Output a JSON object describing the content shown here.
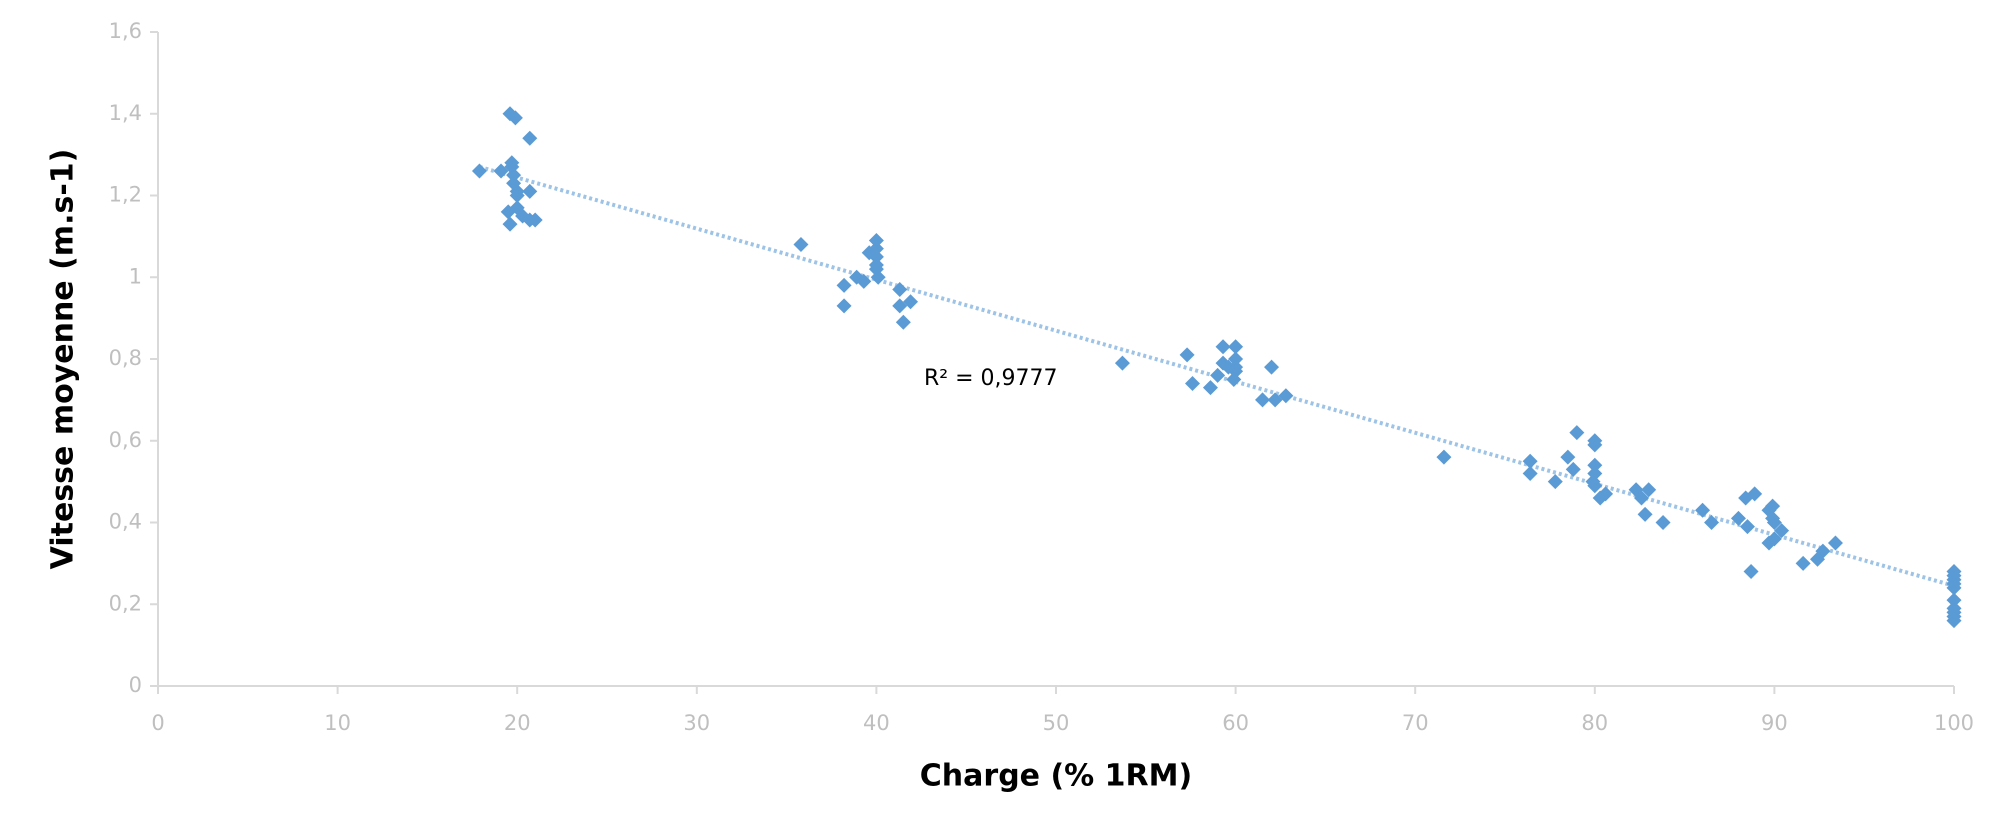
{
  "chart_data": {
    "type": "scatter",
    "x_label": "Charge (% 1RM)",
    "y_label": "Vitesse moyenne (m.s-1)",
    "color": "#5b9bd5",
    "xlim": [
      0,
      100
    ],
    "xticks": [
      0,
      10,
      20,
      30,
      40,
      50,
      60,
      70,
      80,
      90,
      100
    ],
    "ylim": [
      0,
      1.6
    ],
    "yticks": [
      0,
      {
        "value": 0.2,
        "label": "0,2"
      },
      {
        "value": 0.4,
        "label": "0,4"
      },
      {
        "value": 0.6,
        "label": "0,6"
      },
      {
        "value": 0.8,
        "label": "0,8"
      },
      1,
      {
        "value": 1.2,
        "label": "1,2"
      },
      {
        "value": 1.4,
        "label": "1,4"
      },
      {
        "value": 1.6,
        "label": "1,6"
      }
    ],
    "x": [
      17.9,
      19.1,
      19.6,
      19.9,
      19.7,
      19.7,
      19.8,
      19.8,
      20.0,
      20.0,
      20.7,
      20.7,
      19.5,
      19.6,
      20.0,
      20.3,
      20.7,
      21.0,
      35.8,
      40.0,
      40.0,
      39.6,
      40.0,
      40.0,
      40.0,
      40.1,
      38.9,
      39.3,
      38.2,
      38.2,
      41.3,
      41.9,
      41.3,
      41.5,
      53.7,
      57.3,
      57.6,
      58.6,
      59.0,
      59.3,
      59.3,
      59.6,
      60.0,
      60.0,
      60.0,
      60.0,
      59.9,
      62.0,
      61.5,
      62.2,
      62.8,
      71.6,
      76.4,
      76.4,
      77.8,
      78.5,
      78.8,
      79.0,
      80.0,
      80.0,
      80.0,
      80.0,
      79.9,
      80.0,
      80.3,
      80.6,
      82.3,
      82.6,
      83.0,
      82.8,
      83.8,
      86.0,
      86.5,
      88.0,
      88.4,
      88.5,
      88.9,
      88.7,
      89.7,
      89.9,
      89.9,
      90.0,
      90.4,
      89.7,
      90.0,
      91.6,
      92.4,
      92.7,
      93.4,
      100,
      100,
      100,
      100,
      100,
      100,
      100,
      100,
      100,
      100
    ],
    "values": [
      1.26,
      1.26,
      1.4,
      1.39,
      1.28,
      1.27,
      1.25,
      1.23,
      1.21,
      1.2,
      1.34,
      1.21,
      1.16,
      1.13,
      1.17,
      1.15,
      1.14,
      1.14,
      1.08,
      1.09,
      1.07,
      1.06,
      1.05,
      1.03,
      1.02,
      1.0,
      1.0,
      0.99,
      0.98,
      0.93,
      0.97,
      0.94,
      0.93,
      0.89,
      0.79,
      0.81,
      0.74,
      0.73,
      0.76,
      0.83,
      0.79,
      0.78,
      0.83,
      0.8,
      0.78,
      0.77,
      0.75,
      0.78,
      0.7,
      0.7,
      0.71,
      0.56,
      0.55,
      0.52,
      0.5,
      0.56,
      0.53,
      0.62,
      0.6,
      0.59,
      0.54,
      0.52,
      0.5,
      0.49,
      0.46,
      0.47,
      0.48,
      0.46,
      0.48,
      0.42,
      0.4,
      0.43,
      0.4,
      0.41,
      0.46,
      0.39,
      0.47,
      0.28,
      0.43,
      0.44,
      0.41,
      0.4,
      0.38,
      0.35,
      0.36,
      0.3,
      0.31,
      0.33,
      0.35,
      0.28,
      0.27,
      0.26,
      0.25,
      0.24,
      0.21,
      0.19,
      0.18,
      0.17,
      0.16
    ],
    "trendline": {
      "color": "#9dc3e6",
      "x": [
        17.9,
        100
      ],
      "values": [
        1.27,
        0.245
      ]
    },
    "annotation": "R² = 0,9777"
  }
}
